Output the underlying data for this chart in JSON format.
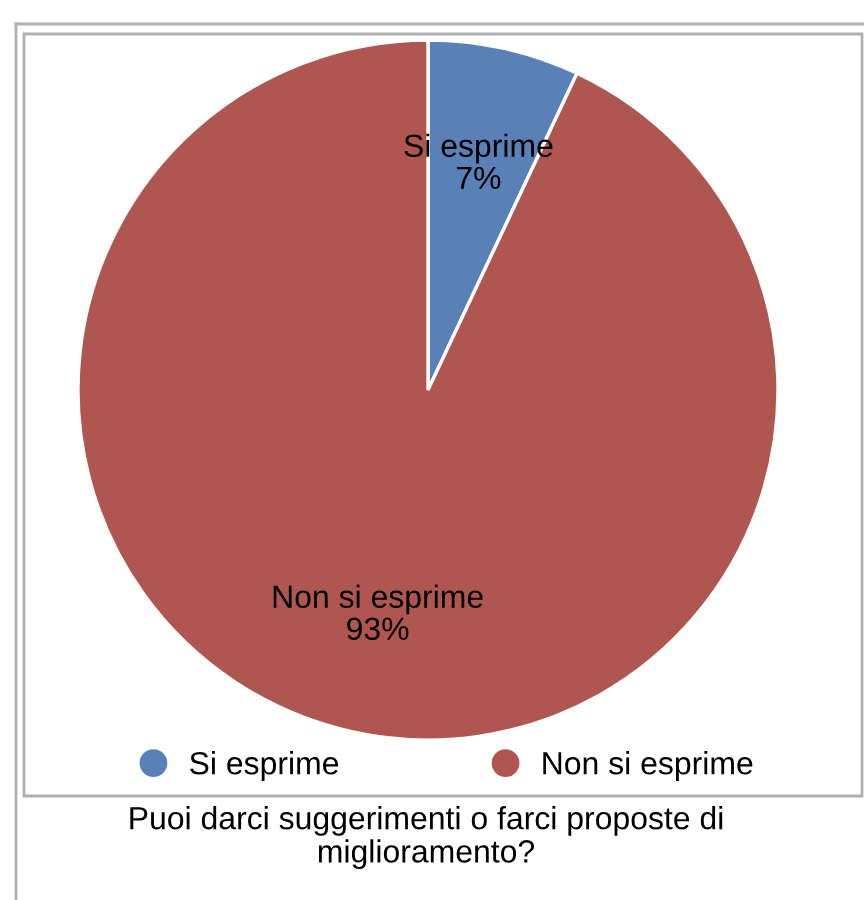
{
  "chart_data": {
    "type": "pie",
    "title": "Puoi darci suggerimenti o farci proposte di miglioramento?",
    "categories": [
      "Si esprime",
      "Non si esprime"
    ],
    "values": [
      7,
      93
    ],
    "colors": [
      "#5a80b8",
      "#b05651"
    ],
    "value_labels": [
      "7%",
      "93%"
    ],
    "legend": "bottom"
  }
}
